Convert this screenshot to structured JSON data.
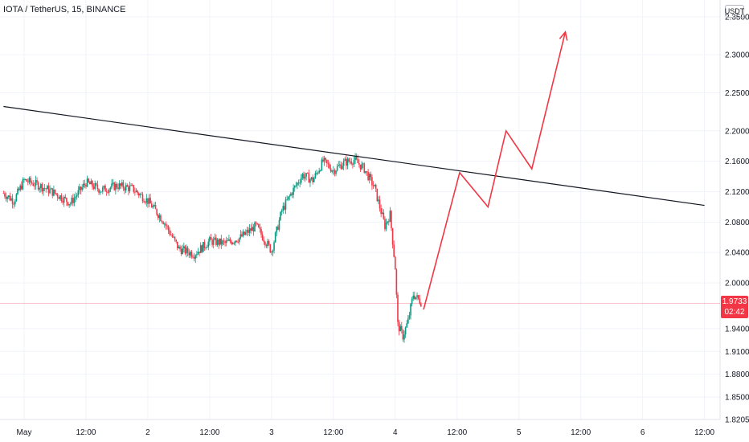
{
  "header": {
    "title": "IOTA / TetherUS, 15, BINANCE",
    "currency": "USDT"
  },
  "last_price": {
    "value": "1.9733",
    "countdown": "02:42",
    "color": "#f23645"
  },
  "chart_data": {
    "type": "candlestick",
    "title": "IOTA / TetherUS, 15, BINANCE",
    "ylim": [
      1.8205,
      2.372
    ],
    "y_ticks": [
      1.8205,
      1.85,
      1.88,
      1.91,
      1.94,
      2.0,
      2.04,
      2.08,
      2.12,
      2.16,
      2.2,
      2.25,
      2.3,
      2.35
    ],
    "y_tick_labels": [
      "1.8205",
      "1.8500",
      "1.8800",
      "1.9100",
      "1.9400",
      "2.0000",
      "2.0400",
      "2.0800",
      "2.1200",
      "2.1600",
      "2.2000",
      "2.2500",
      "2.3000",
      "2.3500"
    ],
    "x_ticks": [
      {
        "label": "May",
        "t": 0
      },
      {
        "label": "12:00",
        "t": 12
      },
      {
        "label": "2",
        "t": 24
      },
      {
        "label": "12:00",
        "t": 36
      },
      {
        "label": "3",
        "t": 48
      },
      {
        "label": "12:00",
        "t": 60
      },
      {
        "label": "4",
        "t": 72
      },
      {
        "label": "12:00",
        "t": 84
      },
      {
        "label": "5",
        "t": 96
      },
      {
        "label": "12:00",
        "t": 108
      },
      {
        "label": "6",
        "t": 120
      },
      {
        "label": "12:00",
        "t": 132
      }
    ],
    "price_path_hours": [
      -4,
      -2,
      0,
      3,
      6,
      9,
      12,
      15,
      18,
      21,
      24,
      27,
      30,
      33,
      36,
      39,
      42,
      45,
      48,
      50,
      52,
      54,
      56,
      58,
      60,
      62,
      64,
      66,
      68,
      70,
      71,
      72,
      72.5,
      73.5,
      74.5,
      75.5,
      77
    ],
    "price_path": [
      2.118,
      2.108,
      2.135,
      2.128,
      2.118,
      2.105,
      2.132,
      2.122,
      2.128,
      2.124,
      2.108,
      2.082,
      2.045,
      2.038,
      2.055,
      2.052,
      2.06,
      2.075,
      2.042,
      2.095,
      2.12,
      2.142,
      2.135,
      2.16,
      2.148,
      2.158,
      2.162,
      2.15,
      2.125,
      2.075,
      2.09,
      2.02,
      1.945,
      1.93,
      1.95,
      1.985,
      1.975
    ],
    "trendline": {
      "t": [
        -4,
        132
      ],
      "y": [
        2.232,
        2.102
      ],
      "color": "#131722"
    },
    "projection": {
      "color": "#f23645",
      "t": [
        77.5,
        84.5,
        90,
        93.5,
        98.5,
        105
      ],
      "y": [
        1.965,
        2.145,
        2.1,
        2.2,
        2.15,
        2.33
      ]
    },
    "last_price": 1.9733
  }
}
